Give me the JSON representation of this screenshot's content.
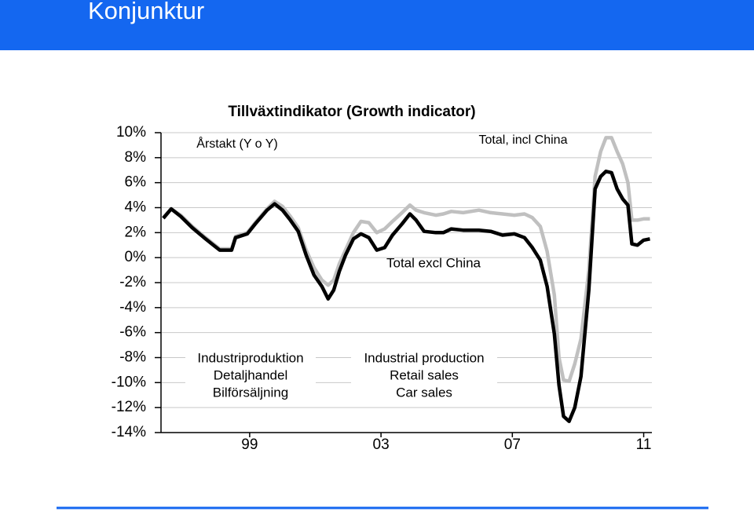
{
  "header": {
    "title": "Konjunktur"
  },
  "chart_data": {
    "type": "line",
    "title": "Tillväxtindikator (Growth indicator)",
    "subtitle": "Årstakt (Y o Y)",
    "x": [
      1996.37,
      1996.61,
      1996.9,
      1997.25,
      1997.61,
      1997.85,
      1998.09,
      1998.45,
      1998.57,
      1998.93,
      1999.17,
      1999.53,
      1999.76,
      2000.0,
      2000.24,
      2000.48,
      2000.72,
      2000.96,
      2001.2,
      2001.39,
      2001.56,
      2001.73,
      2001.92,
      2002.16,
      2002.39,
      2002.63,
      2002.87,
      2003.11,
      2003.35,
      2003.64,
      2003.88,
      2004.07,
      2004.31,
      2004.67,
      2004.9,
      2005.14,
      2005.5,
      2005.98,
      2006.34,
      2006.7,
      2007.06,
      2007.37,
      2007.61,
      2007.85,
      2008.06,
      2008.28,
      2008.42,
      2008.56,
      2008.73,
      2008.9,
      2009.09,
      2009.33,
      2009.52,
      2009.69,
      2009.85,
      2010.02,
      2010.19,
      2010.36,
      2010.52,
      2010.64,
      2010.81,
      2011.0,
      2011.19
    ],
    "series": [
      {
        "name": "Total excl China",
        "color": "#c0c0c0",
        "values": [
          3.2,
          3.9,
          3.4,
          2.5,
          1.7,
          1.2,
          0.7,
          0.7,
          1.7,
          2.0,
          2.8,
          3.9,
          4.5,
          4.1,
          3.3,
          2.4,
          0.6,
          -0.8,
          -1.8,
          -2.2,
          -1.8,
          -0.5,
          0.6,
          2.0,
          2.9,
          2.8,
          2.0,
          2.3,
          2.9,
          3.6,
          4.2,
          3.8,
          3.6,
          3.4,
          3.5,
          3.7,
          3.6,
          3.8,
          3.6,
          3.5,
          3.4,
          3.5,
          3.2,
          2.5,
          0.5,
          -3.0,
          -8.0,
          -9.8,
          -9.9,
          -8.5,
          -6.5,
          -1.0,
          6.5,
          8.5,
          9.6,
          9.6,
          8.5,
          7.5,
          6.0,
          3.0,
          3.0,
          3.1,
          3.1
        ]
      },
      {
        "name": "Total, incl China",
        "color": "#000000",
        "values": [
          3.15,
          3.9,
          3.3,
          2.4,
          1.6,
          1.1,
          0.6,
          0.6,
          1.6,
          1.9,
          2.7,
          3.8,
          4.3,
          3.8,
          3.0,
          2.1,
          0.2,
          -1.4,
          -2.3,
          -3.3,
          -2.6,
          -1.1,
          0.2,
          1.5,
          1.9,
          1.6,
          0.6,
          0.8,
          1.8,
          2.7,
          3.5,
          3.0,
          2.1,
          2.0,
          2.0,
          2.3,
          2.2,
          2.2,
          2.1,
          1.8,
          1.9,
          1.6,
          0.8,
          -0.2,
          -2.3,
          -6.1,
          -10.2,
          -12.7,
          -13.1,
          -12.0,
          -9.5,
          -2.6,
          5.5,
          6.5,
          6.9,
          6.8,
          5.5,
          4.7,
          4.2,
          1.1,
          1.0,
          1.4,
          1.5
        ]
      }
    ],
    "components_sv": [
      "Industriproduktion",
      "Detaljhandel",
      "Bilförsäljning"
    ],
    "components_en": [
      "Industrial production",
      "Retail sales",
      "Car sales"
    ],
    "xlim": [
      1996.3,
      2011.25
    ],
    "xticks": [
      {
        "value": 1999,
        "label": "99"
      },
      {
        "value": 2003,
        "label": "03"
      },
      {
        "value": 2007,
        "label": "07"
      },
      {
        "value": 2011,
        "label": "11"
      }
    ],
    "ylim": [
      -14,
      10
    ],
    "yticks": [
      {
        "value": 10,
        "label": "10%"
      },
      {
        "value": 8,
        "label": "8%"
      },
      {
        "value": 6,
        "label": "6%"
      },
      {
        "value": 4,
        "label": "4%"
      },
      {
        "value": 2,
        "label": "2%"
      },
      {
        "value": 0,
        "label": "0%"
      },
      {
        "value": -2,
        "label": "-2%"
      },
      {
        "value": -4,
        "label": "-4%"
      },
      {
        "value": -6,
        "label": "-6%"
      },
      {
        "value": -8,
        "label": "-8%"
      },
      {
        "value": -10,
        "label": "-10%"
      },
      {
        "value": -12,
        "label": "-12%"
      },
      {
        "value": -14,
        "label": "-14%"
      }
    ],
    "grid": true
  }
}
